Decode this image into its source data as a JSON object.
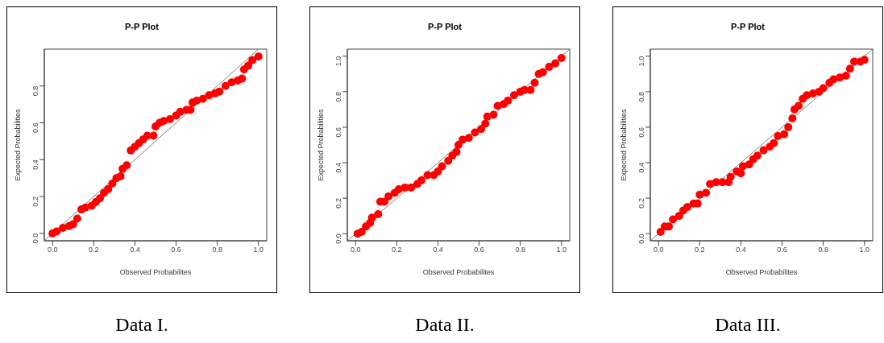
{
  "chart_data": [
    {
      "type": "scatter",
      "title": "P-P Plot",
      "xlabel": "Observed Probabilites",
      "ylabel": "Expected Probabilities",
      "annotations": [
        "Data I."
      ],
      "grid": false,
      "xlim": [
        -0.04,
        1.04
      ],
      "ylim": [
        -0.04,
        1.0
      ],
      "xticks": [
        {
          "value": 0,
          "label": "0.0"
        },
        {
          "value": 0.2,
          "label": "0.2"
        },
        {
          "value": 0.4,
          "label": "0.4"
        },
        {
          "value": 0.6,
          "label": "0.6"
        },
        {
          "value": 0.8,
          "label": "0.8"
        },
        {
          "value": 1,
          "label": "1.0"
        }
      ],
      "yticks": [
        {
          "value": 0,
          "label": "0.0"
        },
        {
          "value": 0.2,
          "label": "0.2"
        },
        {
          "value": 0.4,
          "label": "0.4"
        },
        {
          "value": 0.6,
          "label": "0.6"
        },
        {
          "value": 0.8,
          "label": "0.8"
        }
      ],
      "series": [
        {
          "marker": "circle",
          "color": "#ff0000",
          "x": [
            0,
            0.02,
            0.05,
            0.08,
            0.1,
            0.12,
            0.14,
            0.16,
            0.19,
            0.21,
            0.23,
            0.25,
            0.27,
            0.29,
            0.31,
            0.33,
            0.34,
            0.36,
            0.38,
            0.4,
            0.42,
            0.44,
            0.46,
            0.49,
            0.5,
            0.52,
            0.54,
            0.57,
            0.6,
            0.62,
            0.65,
            0.67,
            0.68,
            0.7,
            0.73,
            0.76,
            0.79,
            0.81,
            0.84,
            0.87,
            0.9,
            0.92,
            0.93,
            0.95,
            0.97,
            1.0
          ],
          "values": [
            0,
            0.01,
            0.03,
            0.04,
            0.05,
            0.08,
            0.13,
            0.14,
            0.15,
            0.17,
            0.19,
            0.22,
            0.24,
            0.27,
            0.3,
            0.31,
            0.35,
            0.37,
            0.45,
            0.47,
            0.49,
            0.51,
            0.53,
            0.53,
            0.58,
            0.6,
            0.61,
            0.62,
            0.64,
            0.66,
            0.67,
            0.67,
            0.71,
            0.72,
            0.73,
            0.75,
            0.76,
            0.77,
            0.8,
            0.82,
            0.83,
            0.84,
            0.89,
            0.91,
            0.94,
            0.96
          ]
        },
        {
          "type": "line",
          "marker": "none",
          "color": "#808080",
          "x": [
            -0.04,
            1.0
          ],
          "values": [
            -0.04,
            1.0
          ]
        }
      ]
    },
    {
      "type": "scatter",
      "title": "P-P Plot",
      "xlabel": "Observed Probabilites",
      "ylabel": "Expected Probabilities",
      "annotations": [
        "Data II."
      ],
      "grid": false,
      "xlim": [
        -0.04,
        1.04
      ],
      "ylim": [
        -0.04,
        1.04
      ],
      "xticks": [
        {
          "value": 0,
          "label": "0.0"
        },
        {
          "value": 0.2,
          "label": "0.2"
        },
        {
          "value": 0.4,
          "label": "0.4"
        },
        {
          "value": 0.6,
          "label": "0.6"
        },
        {
          "value": 0.8,
          "label": "0.8"
        },
        {
          "value": 1,
          "label": "1.0"
        }
      ],
      "yticks": [
        {
          "value": 0,
          "label": "0.0"
        },
        {
          "value": 0.2,
          "label": "0.2"
        },
        {
          "value": 0.4,
          "label": "0.4"
        },
        {
          "value": 0.6,
          "label": "0.6"
        },
        {
          "value": 0.8,
          "label": "0.8"
        },
        {
          "value": 1,
          "label": "1.0"
        }
      ],
      "series": [
        {
          "marker": "circle",
          "color": "#ff0000",
          "x": [
            0.01,
            0.03,
            0.05,
            0.07,
            0.08,
            0.11,
            0.12,
            0.14,
            0.16,
            0.19,
            0.21,
            0.24,
            0.27,
            0.3,
            0.32,
            0.35,
            0.38,
            0.4,
            0.42,
            0.45,
            0.47,
            0.49,
            0.5,
            0.52,
            0.55,
            0.58,
            0.61,
            0.63,
            0.64,
            0.67,
            0.69,
            0.72,
            0.74,
            0.77,
            0.8,
            0.82,
            0.85,
            0.87,
            0.89,
            0.91,
            0.94,
            0.97,
            1.0
          ],
          "values": [
            0,
            0.01,
            0.04,
            0.06,
            0.09,
            0.11,
            0.18,
            0.18,
            0.21,
            0.23,
            0.25,
            0.26,
            0.26,
            0.28,
            0.3,
            0.33,
            0.33,
            0.35,
            0.38,
            0.41,
            0.44,
            0.46,
            0.5,
            0.53,
            0.54,
            0.57,
            0.59,
            0.62,
            0.66,
            0.67,
            0.72,
            0.73,
            0.75,
            0.78,
            0.8,
            0.81,
            0.81,
            0.85,
            0.9,
            0.91,
            0.94,
            0.96,
            0.99
          ]
        },
        {
          "type": "line",
          "color": "#808080",
          "x": [
            -0.04,
            1.04
          ],
          "values": [
            -0.04,
            1.04
          ]
        }
      ]
    },
    {
      "type": "scatter",
      "title": "P-P Plot",
      "xlabel": "Observed Probabilites",
      "ylabel": "Expected Probabilities",
      "annotations": [
        "Data III."
      ],
      "grid": false,
      "xlim": [
        -0.04,
        1.04
      ],
      "ylim": [
        -0.04,
        1.04
      ],
      "xticks": [
        {
          "value": 0,
          "label": "0.0"
        },
        {
          "value": 0.2,
          "label": "0.2"
        },
        {
          "value": 0.4,
          "label": "0.4"
        },
        {
          "value": 0.6,
          "label": "0.6"
        },
        {
          "value": 0.8,
          "label": "0.8"
        },
        {
          "value": 1,
          "label": "1.0"
        }
      ],
      "yticks": [
        {
          "value": 0,
          "label": "0.0"
        },
        {
          "value": 0.2,
          "label": "0.2"
        },
        {
          "value": 0.4,
          "label": "0.4"
        },
        {
          "value": 0.6,
          "label": "0.6"
        },
        {
          "value": 0.8,
          "label": "0.8"
        },
        {
          "value": 1,
          "label": "1.0"
        }
      ],
      "series": [
        {
          "marker": "circle",
          "color": "#ff0000",
          "x": [
            0.01,
            0.03,
            0.05,
            0.07,
            0.1,
            0.12,
            0.14,
            0.17,
            0.19,
            0.2,
            0.23,
            0.25,
            0.28,
            0.31,
            0.34,
            0.35,
            0.38,
            0.4,
            0.41,
            0.44,
            0.46,
            0.48,
            0.51,
            0.54,
            0.56,
            0.58,
            0.61,
            0.63,
            0.65,
            0.66,
            0.68,
            0.7,
            0.72,
            0.75,
            0.78,
            0.8,
            0.83,
            0.85,
            0.88,
            0.91,
            0.93,
            0.95,
            0.98,
            1.0
          ],
          "values": [
            0.01,
            0.04,
            0.04,
            0.08,
            0.1,
            0.13,
            0.15,
            0.17,
            0.17,
            0.22,
            0.23,
            0.28,
            0.29,
            0.29,
            0.29,
            0.32,
            0.35,
            0.34,
            0.38,
            0.39,
            0.42,
            0.44,
            0.47,
            0.49,
            0.51,
            0.55,
            0.56,
            0.6,
            0.65,
            0.7,
            0.72,
            0.76,
            0.78,
            0.79,
            0.8,
            0.82,
            0.85,
            0.87,
            0.88,
            0.89,
            0.93,
            0.97,
            0.97,
            0.98
          ]
        },
        {
          "type": "line",
          "color": "#808080",
          "x": [
            -0.04,
            1.04
          ],
          "values": [
            -0.04,
            1.04
          ]
        }
      ]
    }
  ]
}
